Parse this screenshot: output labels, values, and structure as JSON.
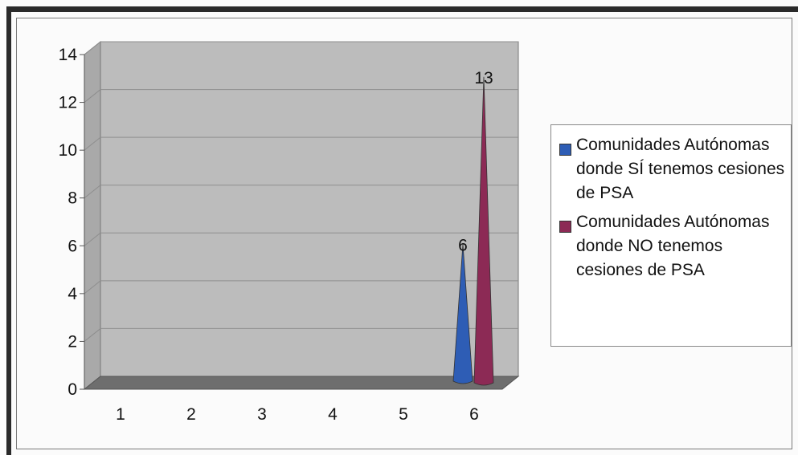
{
  "chart_data": {
    "type": "bar",
    "style": "3d-cone",
    "categories": [
      "1",
      "2",
      "3",
      "4",
      "5",
      "6"
    ],
    "series": [
      {
        "name": "Comunidades Autónomas donde SÍ tenemos cesiones de PSA",
        "color": "#2e5db5",
        "values": [
          null,
          null,
          null,
          null,
          null,
          6
        ]
      },
      {
        "name": "Comunidades Autónomas donde NO tenemos cesiones de PSA",
        "color": "#8c2a55",
        "values": [
          null,
          null,
          null,
          null,
          null,
          13
        ]
      }
    ],
    "data_labels": [
      "6",
      "13"
    ],
    "yticks": [
      "0",
      "2",
      "4",
      "6",
      "8",
      "10",
      "12",
      "14"
    ],
    "ylim": [
      0,
      14
    ],
    "grid": true,
    "legend_position": "right",
    "wall_color": "#bcbcbc",
    "floor_color": "#6e6e6e"
  }
}
